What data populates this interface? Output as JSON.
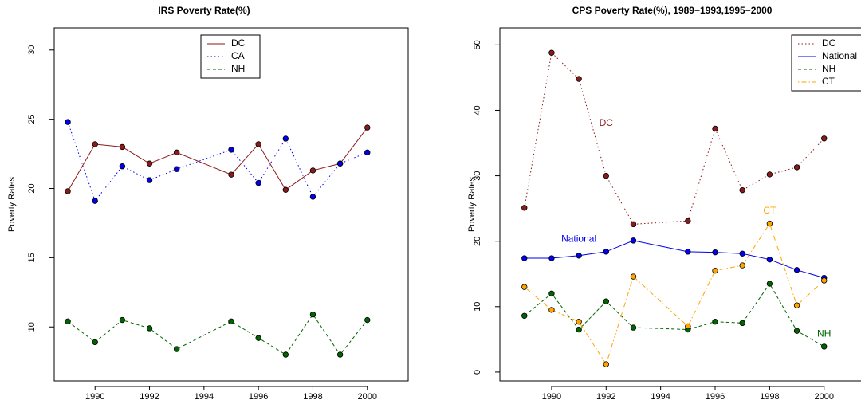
{
  "chart_data": [
    {
      "type": "line",
      "title": "IRS Poverty Rate(%)",
      "y_label": "Poverty Rates",
      "x": [
        1989,
        1990,
        1991,
        1992,
        1993,
        1995,
        1996,
        1997,
        1998,
        1999,
        2000
      ],
      "xlim": [
        1988.5,
        2001.5
      ],
      "xticks": [
        1990,
        1992,
        1994,
        1996,
        1998,
        2000
      ],
      "ylim": [
        6.1,
        31.6
      ],
      "yticks": [
        10,
        15,
        20,
        25,
        30
      ],
      "legend": "top",
      "series": [
        {
          "name": "DC",
          "color": "#8b1a1a",
          "linestyle": "solid",
          "values": [
            19.8,
            23.2,
            23.0,
            21.8,
            22.6,
            21.0,
            23.2,
            19.9,
            21.3,
            21.8,
            24.4
          ]
        },
        {
          "name": "CA",
          "color": "#0000ee",
          "linestyle": "dotted",
          "values": [
            24.8,
            19.1,
            21.6,
            20.6,
            21.4,
            22.8,
            20.4,
            23.6,
            19.4,
            21.8,
            22.6
          ]
        },
        {
          "name": "NH",
          "color": "#006400",
          "linestyle": "dashed",
          "values": [
            10.4,
            8.9,
            10.5,
            9.9,
            8.4,
            10.4,
            9.2,
            8.0,
            10.9,
            8.0,
            10.5
          ]
        }
      ]
    },
    {
      "type": "line",
      "title": "CPS Poverty Rate(%), 1989−1993,1995−2000",
      "y_label": "Poverty Rates",
      "x": [
        1989,
        1990,
        1991,
        1992,
        1993,
        1995,
        1996,
        1997,
        1998,
        1999,
        2000
      ],
      "xlim": [
        1988.1,
        2001.5
      ],
      "xticks": [
        1990,
        1992,
        1994,
        1996,
        1998,
        2000
      ],
      "ylim": [
        -1.35,
        52.6
      ],
      "yticks": [
        0,
        10,
        20,
        30,
        40,
        50
      ],
      "legend": "topright",
      "series": [
        {
          "name": "DC",
          "color": "#8b1a1a",
          "linestyle": "dotted",
          "values": [
            25.1,
            48.8,
            44.8,
            30.0,
            22.6,
            23.1,
            37.2,
            27.8,
            30.2,
            31.3,
            35.7
          ]
        },
        {
          "name": "National",
          "color": "#0000ee",
          "linestyle": "solid",
          "values": [
            17.4,
            17.4,
            17.8,
            18.4,
            20.1,
            18.4,
            18.3,
            18.1,
            17.2,
            15.6,
            14.4
          ]
        },
        {
          "name": "NH",
          "color": "#006400",
          "linestyle": "dashed",
          "values": [
            8.6,
            12.0,
            6.5,
            10.8,
            6.8,
            6.5,
            7.7,
            7.5,
            13.5,
            6.3,
            3.9
          ]
        },
        {
          "name": "CT",
          "color": "#ffa500",
          "linestyle": "dotdash",
          "values": [
            13.0,
            9.5,
            7.7,
            1.2,
            14.6,
            7.0,
            15.5,
            16.3,
            22.7,
            10.2,
            14.0
          ]
        }
      ],
      "annotations": [
        "DC",
        "National",
        "CT",
        "NH"
      ]
    }
  ]
}
